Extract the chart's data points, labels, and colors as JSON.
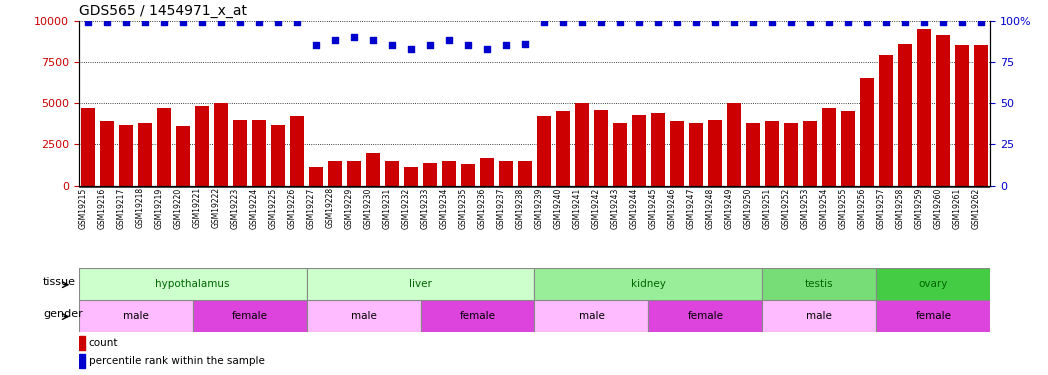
{
  "title": "GDS565 / 1454971_x_at",
  "samples": [
    "GSM19215",
    "GSM19216",
    "GSM19217",
    "GSM19218",
    "GSM19219",
    "GSM19220",
    "GSM19221",
    "GSM19222",
    "GSM19223",
    "GSM19224",
    "GSM19225",
    "GSM19226",
    "GSM19227",
    "GSM19228",
    "GSM19229",
    "GSM19230",
    "GSM19231",
    "GSM19232",
    "GSM19233",
    "GSM19234",
    "GSM19235",
    "GSM19236",
    "GSM19237",
    "GSM19238",
    "GSM19239",
    "GSM19240",
    "GSM19241",
    "GSM19242",
    "GSM19243",
    "GSM19244",
    "GSM19245",
    "GSM19246",
    "GSM19247",
    "GSM19248",
    "GSM19249",
    "GSM19250",
    "GSM19251",
    "GSM19252",
    "GSM19253",
    "GSM19254",
    "GSM19255",
    "GSM19256",
    "GSM19257",
    "GSM19258",
    "GSM19259",
    "GSM19260",
    "GSM19261",
    "GSM19262"
  ],
  "counts": [
    4700,
    3900,
    3700,
    3800,
    4700,
    3600,
    4800,
    5000,
    4000,
    4000,
    3700,
    4200,
    1100,
    1500,
    1500,
    2000,
    1500,
    1100,
    1400,
    1500,
    1300,
    1700,
    1500,
    1500,
    4200,
    4500,
    5000,
    4600,
    3800,
    4300,
    4400,
    3900,
    3800,
    4000,
    5000,
    3800,
    3900,
    3800,
    3900,
    4700,
    4500,
    6500,
    7900,
    8600,
    9500,
    9100,
    8500,
    8500
  ],
  "percentile": [
    99,
    99,
    99,
    99,
    99,
    99,
    99,
    99,
    99,
    99,
    99,
    99,
    85,
    88,
    90,
    88,
    85,
    83,
    85,
    88,
    85,
    83,
    85,
    86,
    99,
    99,
    99,
    99,
    99,
    99,
    99,
    99,
    99,
    99,
    99,
    99,
    99,
    99,
    99,
    99,
    99,
    99,
    99,
    99,
    99,
    99,
    99,
    99
  ],
  "bar_color": "#cc0000",
  "dot_color": "#0000cc",
  "ylim_left": [
    0,
    10000
  ],
  "ylim_right": [
    0,
    100
  ],
  "yticks_left": [
    0,
    2500,
    5000,
    7500,
    10000
  ],
  "yticks_right": [
    0,
    25,
    50,
    75,
    100
  ],
  "tissue_groups": [
    {
      "label": "hypothalamus",
      "start": 0,
      "end": 12
    },
    {
      "label": "liver",
      "start": 12,
      "end": 24
    },
    {
      "label": "kidney",
      "start": 24,
      "end": 36
    },
    {
      "label": "testis",
      "start": 36,
      "end": 42
    },
    {
      "label": "ovary",
      "start": 42,
      "end": 48
    }
  ],
  "tissue_colors": {
    "hypothalamus": "#ccffcc",
    "liver": "#ccffcc",
    "kidney": "#99ee99",
    "testis": "#77dd77",
    "ovary": "#44cc44"
  },
  "gender_groups": [
    {
      "label": "male",
      "start": 0,
      "end": 6
    },
    {
      "label": "female",
      "start": 6,
      "end": 12
    },
    {
      "label": "male",
      "start": 12,
      "end": 18
    },
    {
      "label": "female",
      "start": 18,
      "end": 24
    },
    {
      "label": "male",
      "start": 24,
      "end": 30
    },
    {
      "label": "female",
      "start": 30,
      "end": 36
    },
    {
      "label": "male",
      "start": 36,
      "end": 42
    },
    {
      "label": "female",
      "start": 42,
      "end": 48
    }
  ],
  "gender_colors": {
    "male": "#ffbbff",
    "female": "#dd44dd"
  },
  "background_color": "#ffffff"
}
